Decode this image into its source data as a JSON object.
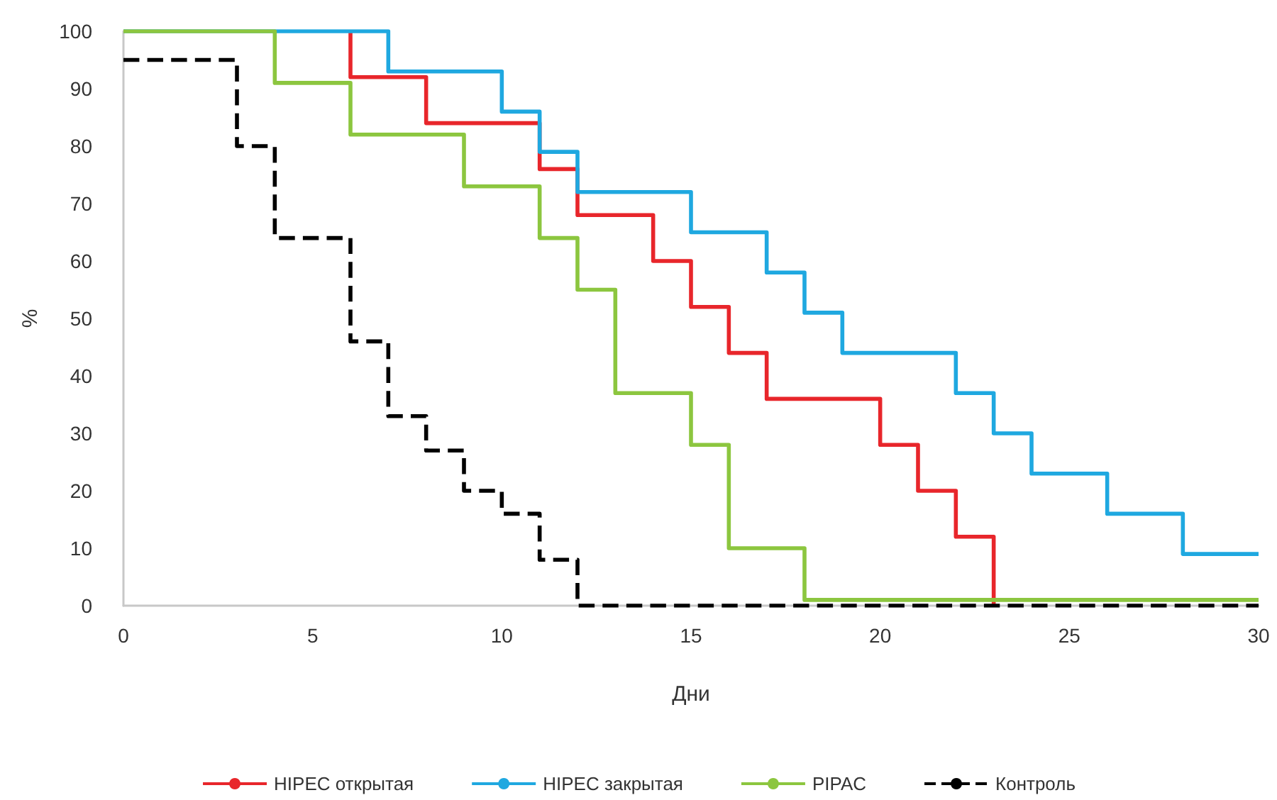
{
  "chart_data": {
    "type": "step",
    "xlabel": "Дни",
    "ylabel": "%",
    "xlim": [
      0,
      30
    ],
    "xticks": [
      0,
      5,
      10,
      15,
      20,
      25,
      30
    ],
    "ylim": [
      0,
      100
    ],
    "yticks": [
      0,
      10,
      20,
      30,
      40,
      50,
      60,
      70,
      80,
      90,
      100
    ],
    "grid": false,
    "legend": "bottom",
    "marker": "none",
    "series": [
      {
        "name": "HIPEC открытая",
        "color": "#e8262b",
        "line_style": "solid",
        "x": [
          6,
          6,
          8,
          11,
          12,
          14,
          15,
          16,
          17,
          20,
          21,
          22,
          23
        ],
        "values": [
          100,
          92,
          84,
          76,
          68,
          60,
          52,
          44,
          36,
          28,
          20,
          12,
          0
        ]
      },
      {
        "name": "HIPEC закрытая",
        "color": "#1fa8e0",
        "line_style": "solid",
        "x": [
          0,
          7,
          10,
          11,
          12,
          15,
          17,
          18,
          19,
          22,
          23,
          24,
          26,
          28,
          30
        ],
        "values": [
          100,
          93,
          86,
          79,
          72,
          65,
          58,
          51,
          44,
          37,
          30,
          23,
          16,
          9,
          9
        ]
      },
      {
        "name": "PIPAC",
        "color": "#8cc63f",
        "line_style": "solid",
        "x": [
          0,
          4,
          6,
          9,
          11,
          12,
          13,
          15,
          16,
          18,
          30
        ],
        "values": [
          100,
          91,
          82,
          73,
          64,
          55,
          37,
          28,
          10,
          1,
          1
        ]
      },
      {
        "name": "Контроль",
        "color": "#000000",
        "line_style": "dashed",
        "x": [
          0,
          3,
          4,
          6,
          7,
          8,
          9,
          10,
          11,
          12,
          30
        ],
        "values": [
          95,
          80,
          64,
          46,
          33,
          27,
          20,
          16,
          8,
          0,
          0
        ]
      }
    ]
  }
}
